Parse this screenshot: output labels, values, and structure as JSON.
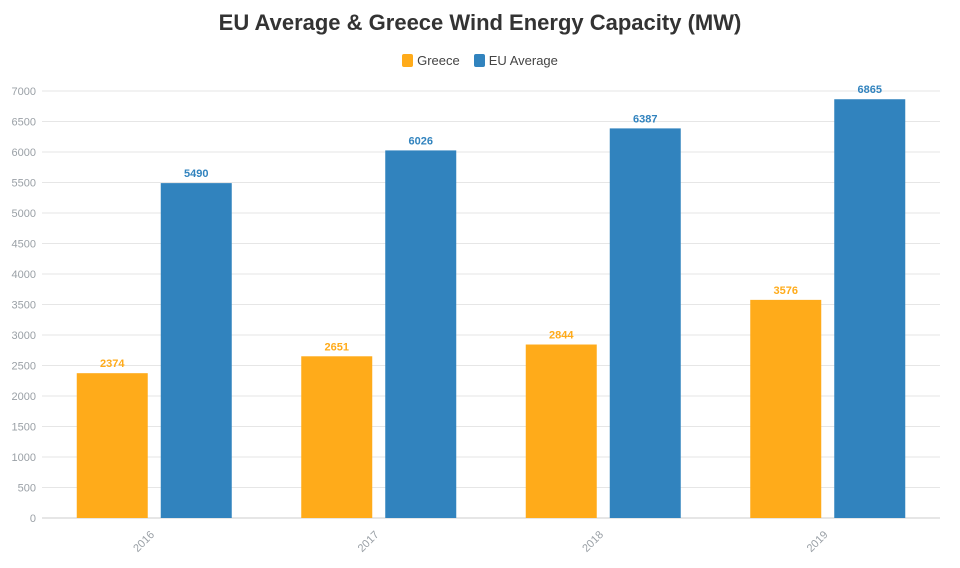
{
  "chart_data": {
    "type": "bar",
    "title": "EU Average & Greece Wind Energy Capacity (MW)",
    "xlabel": "",
    "ylabel": "",
    "categories": [
      "2016",
      "2017",
      "2018",
      "2019"
    ],
    "series": [
      {
        "name": "Greece",
        "values": [
          2374,
          2651,
          2844,
          3576
        ],
        "color": "#FFAB1A"
      },
      {
        "name": "EU Average",
        "values": [
          5490,
          6026,
          6387,
          6865
        ],
        "color": "#3183BE"
      }
    ],
    "ylim": [
      0,
      7000
    ],
    "yticks": [
      0,
      500,
      1000,
      1500,
      2000,
      2500,
      3000,
      3500,
      4000,
      4500,
      5000,
      5500,
      6000,
      6500,
      7000
    ],
    "legend_position": "top-center",
    "grid": true,
    "data_labels": true
  }
}
